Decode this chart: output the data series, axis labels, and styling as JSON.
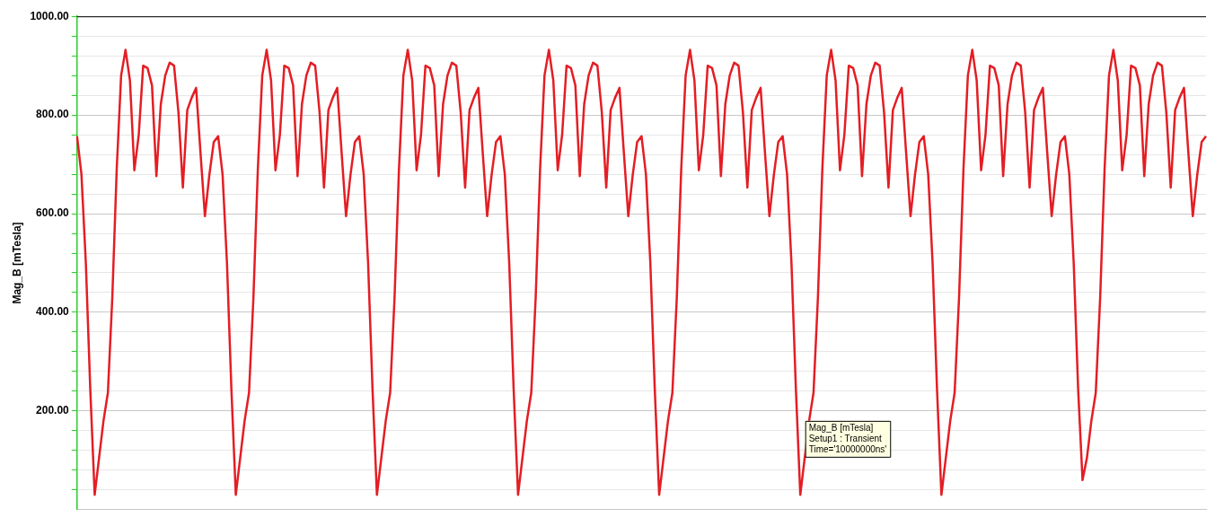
{
  "chart_data": {
    "type": "line",
    "ylabel": "Mag_B [mTesla]",
    "categories": [
      null,
      null,
      null,
      null,
      null,
      null,
      null,
      null,
      null,
      null,
      null,
      null,
      null,
      null,
      null,
      null,
      null,
      null,
      null,
      null,
      null,
      null,
      null,
      null,
      null,
      null,
      null,
      null,
      null,
      null,
      null,
      null,
      null,
      null,
      null,
      null,
      null,
      null,
      null,
      null,
      null,
      null,
      null,
      null,
      null,
      null,
      null,
      null,
      null,
      null,
      null,
      null,
      null,
      null,
      null,
      null,
      null,
      null,
      null,
      null,
      null,
      null,
      null,
      null,
      null,
      null,
      null,
      null,
      null,
      null,
      null,
      null,
      null,
      null,
      null,
      null,
      null,
      null,
      null,
      null,
      null,
      null,
      null,
      null,
      null,
      null,
      null,
      null,
      null,
      null,
      null,
      null,
      null,
      null,
      null,
      null,
      null,
      null,
      null,
      null,
      null,
      null,
      null,
      null,
      null,
      null,
      null,
      null,
      null,
      null,
      null,
      null,
      null,
      null,
      null,
      null,
      null,
      null,
      null,
      null,
      null,
      null,
      null,
      null,
      null,
      null,
      null,
      null,
      null,
      null,
      null,
      null,
      null,
      null,
      null,
      null,
      null,
      null,
      null,
      null,
      null,
      null,
      null,
      null,
      null,
      null,
      null,
      null,
      null,
      null,
      null,
      null,
      null,
      null,
      null,
      null,
      null,
      null,
      null,
      null,
      null,
      null,
      null,
      null,
      null,
      null,
      null,
      null,
      null,
      null,
      null,
      null,
      null,
      null,
      null,
      null,
      null,
      null,
      null,
      null,
      null,
      null,
      null,
      null,
      null,
      null,
      null,
      null,
      null,
      null,
      null,
      null,
      null,
      null,
      null,
      null,
      null,
      null,
      null,
      null,
      null,
      null,
      null,
      null,
      null,
      null,
      null,
      null,
      null,
      null,
      null,
      null,
      null,
      null,
      null,
      null,
      null,
      null,
      null,
      null,
      null,
      null,
      null,
      null,
      null,
      null,
      null,
      null,
      null,
      null,
      null,
      null,
      null,
      null,
      null,
      null,
      null,
      null,
      null,
      null,
      null,
      null,
      null,
      null,
      null,
      null,
      null,
      null,
      null,
      null,
      null,
      null,
      null,
      null,
      null,
      null,
      null
    ],
    "series": [
      {
        "color": "#e31e24",
        "values": [
          757,
          680,
          500,
          245,
          30,
          105,
          180,
          237,
          430,
          690,
          880,
          932,
          870,
          688,
          760,
          900,
          895,
          860,
          676,
          822,
          880,
          906,
          900,
          805,
          653,
          810,
          835,
          855,
          723,
          595,
          678,
          745,
          757,
          680,
          500,
          245,
          30,
          105,
          180,
          237,
          430,
          690,
          880,
          932,
          870,
          688,
          760,
          900,
          895,
          860,
          676,
          822,
          880,
          906,
          900,
          805,
          653,
          810,
          835,
          855,
          723,
          595,
          678,
          745,
          757,
          680,
          500,
          245,
          30,
          105,
          180,
          237,
          430,
          690,
          880,
          932,
          870,
          688,
          760,
          900,
          895,
          860,
          676,
          822,
          880,
          906,
          900,
          805,
          653,
          810,
          835,
          855,
          723,
          595,
          678,
          745,
          757,
          680,
          500,
          245,
          30,
          105,
          180,
          237,
          430,
          690,
          880,
          932,
          870,
          688,
          760,
          900,
          895,
          860,
          676,
          822,
          880,
          906,
          900,
          805,
          653,
          810,
          835,
          855,
          723,
          595,
          678,
          745,
          757,
          680,
          500,
          245,
          30,
          105,
          180,
          237,
          430,
          690,
          880,
          932,
          870,
          688,
          760,
          900,
          895,
          860,
          676,
          822,
          880,
          906,
          900,
          805,
          653,
          810,
          835,
          855,
          723,
          595,
          678,
          745,
          757,
          680,
          500,
          245,
          30,
          105,
          180,
          237,
          430,
          690,
          880,
          932,
          870,
          688,
          760,
          900,
          895,
          860,
          676,
          822,
          880,
          906,
          900,
          805,
          653,
          810,
          835,
          855,
          723,
          595,
          678,
          745,
          757,
          680,
          500,
          245,
          30,
          105,
          180,
          237,
          430,
          690,
          880,
          932,
          870,
          688,
          760,
          900,
          895,
          860,
          676,
          822,
          880,
          906,
          900,
          805,
          653,
          810,
          835,
          855,
          723,
          595,
          678,
          745,
          757,
          680,
          500,
          245,
          60,
          105,
          180,
          237,
          430,
          690,
          880,
          932,
          870,
          688,
          760,
          900,
          895,
          860,
          676,
          822,
          880,
          906,
          900,
          805,
          653,
          810,
          835,
          855,
          723,
          595,
          678,
          745,
          757
        ]
      }
    ],
    "ylim": [
      0,
      1000
    ],
    "yticks": [
      {
        "value": 40,
        "label": null
      },
      {
        "value": 80,
        "label": null
      },
      {
        "value": 120,
        "label": null
      },
      {
        "value": 160,
        "label": null
      },
      {
        "value": 200,
        "label": "200.00"
      },
      {
        "value": 240,
        "label": null
      },
      {
        "value": 280,
        "label": null
      },
      {
        "value": 320,
        "label": null
      },
      {
        "value": 360,
        "label": null
      },
      {
        "value": 400,
        "label": "400.00"
      },
      {
        "value": 440,
        "label": null
      },
      {
        "value": 480,
        "label": null
      },
      {
        "value": 520,
        "label": null
      },
      {
        "value": 560,
        "label": null
      },
      {
        "value": 600,
        "label": "600.00"
      },
      {
        "value": 640,
        "label": null
      },
      {
        "value": 680,
        "label": null
      },
      {
        "value": 720,
        "label": null
      },
      {
        "value": 760,
        "label": null
      },
      {
        "value": 800,
        "label": "800.00"
      },
      {
        "value": 840,
        "label": null
      },
      {
        "value": 880,
        "label": null
      },
      {
        "value": 920,
        "label": null
      },
      {
        "value": 960,
        "label": null
      },
      {
        "value": 1000,
        "label": "1000.00"
      }
    ],
    "grid": "y",
    "marker": "none",
    "line_style": "solid",
    "tick_labels": "y",
    "annotations": [
      "Mag_B [mTesla]\nSetup1 : Transient\nTime='10000000ns'"
    ]
  }
}
